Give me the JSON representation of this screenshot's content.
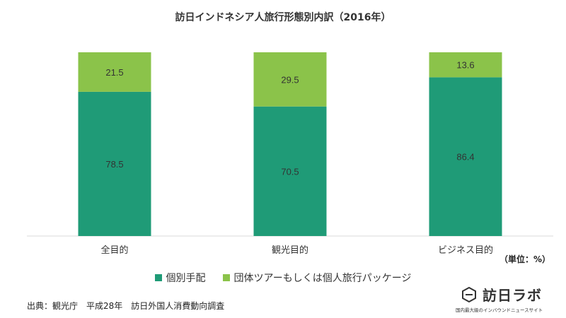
{
  "chart_data": {
    "type": "bar",
    "stacked": true,
    "title": "訪日インドネシア人旅行形態別内訳（2016年）",
    "categories": [
      "全目的",
      "観光目的",
      "ビジネス目的"
    ],
    "series": [
      {
        "name": "個別手配",
        "values": [
          78.5,
          70.5,
          86.4
        ],
        "color": "#1f9b77"
      },
      {
        "name": "団体ツアーもしくは個人旅行パッケージ",
        "values": [
          21.5,
          29.5,
          13.6
        ],
        "color": "#8bc34a"
      }
    ],
    "ylim": [
      0,
      100
    ],
    "grid": false,
    "legend_position": "bottom",
    "unit_note": "（単位：%）"
  },
  "footer": {
    "source": "出典：観光庁　平成28年　訪日外国人消費動向調査",
    "brand_name": "訪日ラボ",
    "brand_tagline": "国内最大級のインバウンドニュースサイト"
  }
}
